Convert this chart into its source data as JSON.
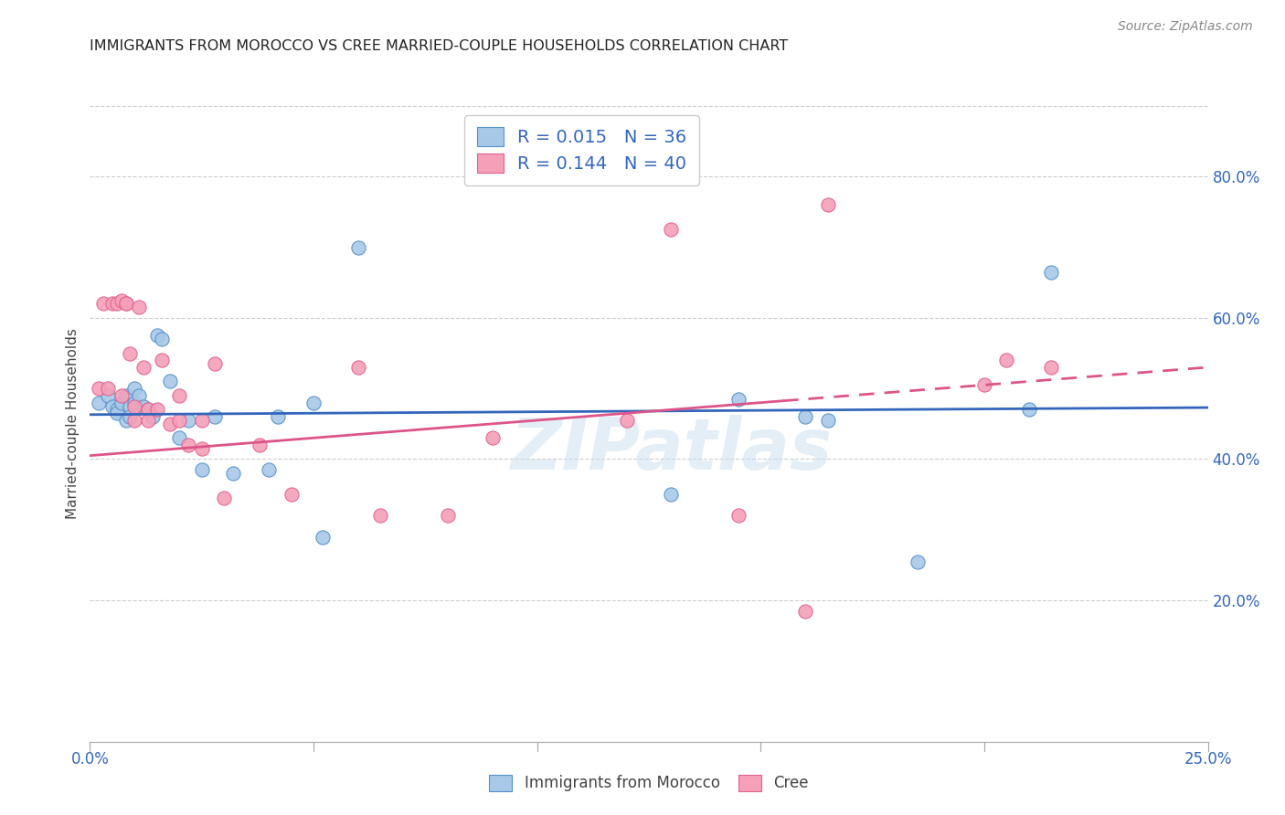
{
  "title": "IMMIGRANTS FROM MOROCCO VS CREE MARRIED-COUPLE HOUSEHOLDS CORRELATION CHART",
  "source": "Source: ZipAtlas.com",
  "ylabel": "Married-couple Households",
  "x_min": 0.0,
  "x_max": 0.25,
  "y_min": 0.0,
  "y_max": 0.9,
  "x_tick_positions": [
    0.0,
    0.05,
    0.1,
    0.15,
    0.2,
    0.25
  ],
  "x_tick_labels": [
    "0.0%",
    "",
    "",
    "",
    "",
    "25.0%"
  ],
  "y_ticks_right": [
    0.2,
    0.4,
    0.6,
    0.8
  ],
  "y_tick_labels_right": [
    "20.0%",
    "40.0%",
    "60.0%",
    "80.0%"
  ],
  "legend_r1": "0.015",
  "legend_n1": "36",
  "legend_r2": "0.144",
  "legend_n2": "40",
  "color_blue": "#a8c8e8",
  "color_pink": "#f4a0b8",
  "color_blue_edge": "#5590c8",
  "color_pink_edge": "#e06090",
  "color_line_blue": "#3366bb",
  "color_line_pink": "#dd5588",
  "watermark": "ZIPatlas",
  "blue_scatter_x": [
    0.002,
    0.004,
    0.005,
    0.006,
    0.006,
    0.007,
    0.008,
    0.008,
    0.009,
    0.009,
    0.01,
    0.01,
    0.011,
    0.012,
    0.013,
    0.014,
    0.015,
    0.016,
    0.018,
    0.02,
    0.022,
    0.025,
    0.028,
    0.032,
    0.04,
    0.042,
    0.05,
    0.052,
    0.06,
    0.13,
    0.145,
    0.16,
    0.165,
    0.185,
    0.21,
    0.215
  ],
  "blue_scatter_y": [
    0.48,
    0.49,
    0.475,
    0.47,
    0.465,
    0.48,
    0.49,
    0.455,
    0.475,
    0.46,
    0.5,
    0.48,
    0.49,
    0.475,
    0.47,
    0.46,
    0.575,
    0.57,
    0.51,
    0.43,
    0.455,
    0.385,
    0.46,
    0.38,
    0.385,
    0.46,
    0.48,
    0.29,
    0.7,
    0.35,
    0.485,
    0.46,
    0.455,
    0.255,
    0.47,
    0.665
  ],
  "pink_scatter_x": [
    0.002,
    0.003,
    0.004,
    0.005,
    0.006,
    0.007,
    0.007,
    0.008,
    0.008,
    0.009,
    0.01,
    0.01,
    0.011,
    0.012,
    0.013,
    0.013,
    0.015,
    0.016,
    0.018,
    0.02,
    0.02,
    0.022,
    0.025,
    0.025,
    0.028,
    0.03,
    0.038,
    0.045,
    0.06,
    0.065,
    0.08,
    0.09,
    0.12,
    0.13,
    0.145,
    0.16,
    0.165,
    0.2,
    0.205,
    0.215
  ],
  "pink_scatter_y": [
    0.5,
    0.62,
    0.5,
    0.62,
    0.62,
    0.49,
    0.625,
    0.62,
    0.62,
    0.55,
    0.475,
    0.455,
    0.615,
    0.53,
    0.47,
    0.455,
    0.47,
    0.54,
    0.45,
    0.455,
    0.49,
    0.42,
    0.415,
    0.455,
    0.535,
    0.345,
    0.42,
    0.35,
    0.53,
    0.32,
    0.32,
    0.43,
    0.455,
    0.725,
    0.32,
    0.185,
    0.76,
    0.505,
    0.54,
    0.53
  ],
  "blue_line_x": [
    0.0,
    0.25
  ],
  "blue_line_y": [
    0.463,
    0.473
  ],
  "pink_line_x": [
    0.0,
    0.25
  ],
  "pink_line_y": [
    0.405,
    0.53
  ],
  "pink_line_dashed_start": 0.155
}
